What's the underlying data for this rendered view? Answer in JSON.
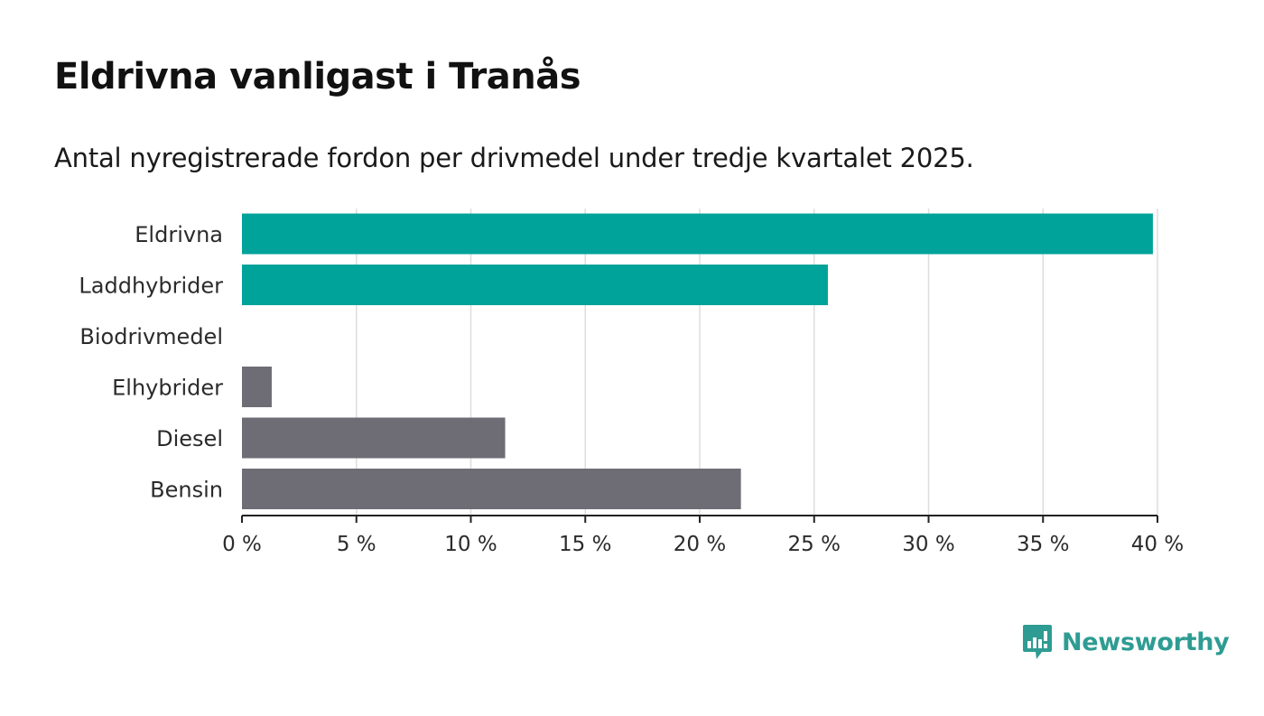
{
  "header": {
    "title": "Eldrivna vanligast i Tranås",
    "subtitle": "Antal nyregistrerade fordon per drivmedel under tredje kvartalet 2025."
  },
  "brand": {
    "name": "Newsworthy",
    "icon": "newsworthy-logo-icon"
  },
  "colors": {
    "highlight": "#00a39a",
    "muted": "#6e6d75",
    "grid": "#dddddd",
    "axis": "#222222",
    "brand": "#2e9c92"
  },
  "chart_data": {
    "type": "bar",
    "orientation": "horizontal",
    "categories": [
      "Eldrivna",
      "Laddhybrider",
      "Biodrivmedel",
      "Elhybrider",
      "Diesel",
      "Bensin"
    ],
    "values": [
      39.8,
      25.6,
      0,
      1.3,
      11.5,
      21.8
    ],
    "highlighted": [
      true,
      true,
      false,
      false,
      false,
      false
    ],
    "xlim": [
      0,
      40
    ],
    "xticks": [
      0,
      5,
      10,
      15,
      20,
      25,
      30,
      35,
      40
    ],
    "xtick_labels": [
      "0 %",
      "5 %",
      "10 %",
      "15 %",
      "20 %",
      "25 %",
      "30 %",
      "35 %",
      "40 %"
    ],
    "xlabel": "",
    "ylabel": "",
    "grid": true,
    "legend": "none"
  }
}
